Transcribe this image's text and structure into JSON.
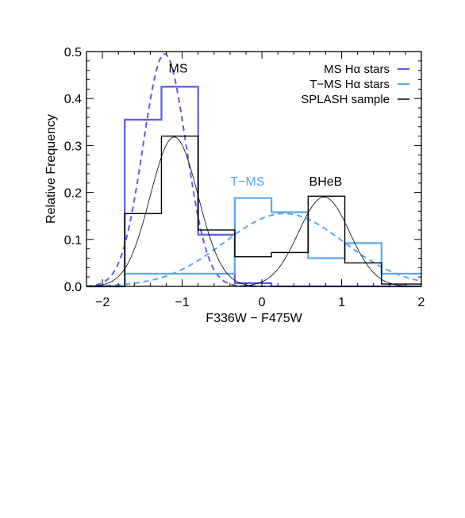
{
  "chart_data": {
    "type": "histogram",
    "xlabel": "F336W − F475W",
    "ylabel": "Relative Frequency",
    "xlim": [
      -2.2,
      2.0
    ],
    "ylim": [
      0.0,
      0.5
    ],
    "x_ticks": [
      -2,
      -1,
      0,
      1,
      2
    ],
    "x_tick_labels": [
      "−2",
      "−1",
      "0",
      "1",
      "2"
    ],
    "y_ticks": [
      0.0,
      0.1,
      0.2,
      0.3,
      0.4,
      0.5
    ],
    "y_tick_labels": [
      "0.0",
      "0.1",
      "0.2",
      "0.3",
      "0.4",
      "0.5"
    ],
    "grid": false,
    "legend_position": "top-right",
    "annotations": [
      {
        "text": "MS",
        "x": -1.05,
        "y": 0.465,
        "color": "#000000"
      },
      {
        "text": "T−MS",
        "x": -0.18,
        "y": 0.225,
        "color": "#57a8f0"
      },
      {
        "text": "BHeB",
        "x": 0.8,
        "y": 0.225,
        "color": "#000000"
      }
    ],
    "series": [
      {
        "name": "MS Hα stars",
        "legend_prefix": "MS H",
        "color": "#5b5bf0",
        "histogram": {
          "edges": [
            -2.2,
            -1.72,
            -1.26,
            -0.8,
            -0.34,
            0.12,
            0.58,
            1.04,
            1.5,
            2.0
          ],
          "values": [
            0.0,
            0.355,
            0.425,
            0.11,
            0.007,
            0.0,
            0.0,
            0.0,
            0.0
          ]
        },
        "curve": {
          "mu": -1.22,
          "sigma": 0.27,
          "peak": 0.495
        }
      },
      {
        "name": "T−MS Hα stars",
        "legend_prefix": "T−MS H",
        "color": "#57a8f0",
        "histogram": {
          "edges": [
            -2.2,
            -1.72,
            -1.26,
            -0.8,
            -0.34,
            0.12,
            0.58,
            1.04,
            1.5,
            2.0
          ],
          "values": [
            0.0,
            0.027,
            0.027,
            0.027,
            0.188,
            0.158,
            0.06,
            0.092,
            0.027
          ]
        },
        "curve": {
          "mu": 0.28,
          "sigma": 0.75,
          "peak": 0.155
        }
      },
      {
        "name": "SPLASH sample",
        "legend_prefix": "SPLASH sample",
        "color": "#000000",
        "histogram": {
          "edges": [
            -2.2,
            -1.72,
            -1.26,
            -0.8,
            -0.34,
            0.12,
            0.58,
            1.04,
            1.5,
            2.0
          ],
          "values": [
            0.0,
            0.155,
            0.32,
            0.12,
            0.063,
            0.072,
            0.192,
            0.05,
            0.005
          ]
        },
        "curve": {
          "mu": -1.1,
          "sigma": 0.3,
          "peak": 0.318
        }
      },
      {
        "name": "",
        "color": "#000000",
        "histogram": null,
        "curve": {
          "mu": 0.78,
          "sigma": 0.32,
          "peak": 0.19
        }
      }
    ]
  }
}
